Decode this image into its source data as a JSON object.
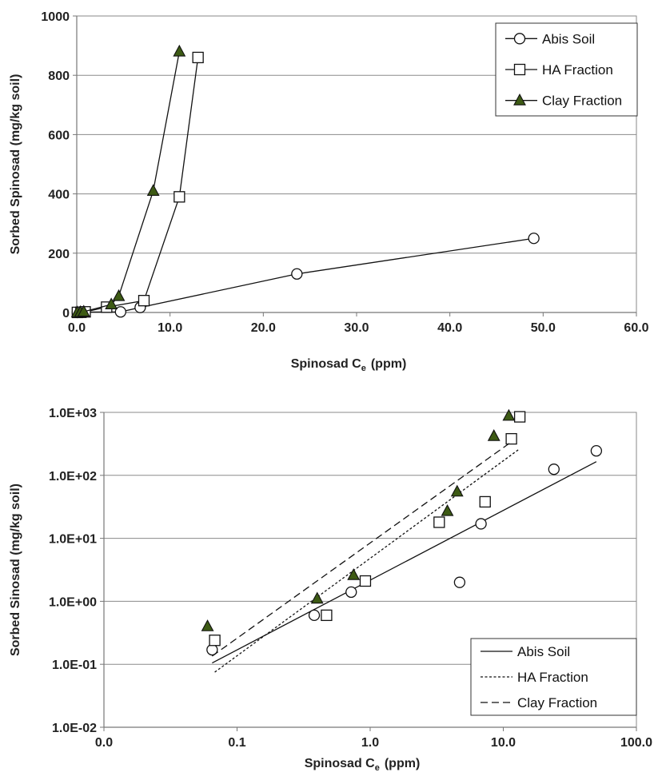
{
  "chart_data": [
    {
      "type": "scatter",
      "xlabel": "Spinosad C",
      "xlabel_sub": "e",
      "xlabel_unit": "(ppm)",
      "ylabel": "Sorbed Spinosad (mg/kg soil)",
      "xlim": [
        0,
        60
      ],
      "ylim": [
        0,
        1000
      ],
      "xticks": [
        0,
        10,
        20,
        30,
        40,
        50,
        60
      ],
      "xtick_labels": [
        "0.0",
        "10.0",
        "20.0",
        "30.0",
        "40.0",
        "50.0",
        "60.0"
      ],
      "yticks": [
        0,
        200,
        400,
        600,
        800,
        1000
      ],
      "ytick_labels": [
        "0",
        "200",
        "400",
        "600",
        "800",
        "1000"
      ],
      "grid": "horizontal",
      "legend_position": "top-right",
      "series": [
        {
          "name": "Abis Soil",
          "marker": "circle",
          "color": "#ffffff",
          "line": "solid",
          "x": [
            0.07,
            0.4,
            0.7,
            4.7,
            6.8,
            23.6,
            49.0
          ],
          "y": [
            0.2,
            0.6,
            1.4,
            2.0,
            17,
            130,
            250
          ]
        },
        {
          "name": "HA Fraction",
          "marker": "square",
          "color": "#ffffff",
          "line": "solid",
          "x": [
            0.07,
            0.45,
            0.9,
            3.2,
            7.2,
            11.0,
            13.0
          ],
          "y": [
            0.2,
            0.6,
            2.1,
            18,
            40,
            390,
            860
          ]
        },
        {
          "name": "Clay Fraction",
          "marker": "triangle",
          "color": "#3d5a14",
          "line": "solid",
          "x": [
            0.06,
            0.4,
            0.75,
            3.7,
            4.5,
            8.2,
            11.0
          ],
          "y": [
            0.4,
            1.1,
            2.6,
            27,
            55,
            410,
            880
          ]
        }
      ]
    },
    {
      "type": "scatter",
      "xscale": "log",
      "yscale": "log",
      "xlabel": "Spinosad C",
      "xlabel_sub": "e",
      "xlabel_unit": "(ppm)",
      "ylabel": "Sorbed Sinosad (mg/kg soil)",
      "xlim": [
        0.01,
        100
      ],
      "ylim": [
        0.01,
        1000
      ],
      "xticks": [
        0.01,
        0.1,
        1,
        10,
        100
      ],
      "xtick_labels": [
        "0.0",
        "0.1",
        "1.0",
        "10.0",
        "100.0"
      ],
      "yticks": [
        0.01,
        0.1,
        1,
        10,
        100,
        1000
      ],
      "ytick_labels": [
        "1.0E-02",
        "1.0E-01",
        "1.0E+00",
        "1.0E+01",
        "1.0E+02",
        "1.0E+03"
      ],
      "grid": "horizontal",
      "legend_position": "bottom-right",
      "series": [
        {
          "name": "Abis Soil",
          "marker": "circle",
          "color": "#ffffff",
          "line": "solid",
          "x": [
            0.065,
            0.38,
            0.72,
            4.7,
            6.8,
            24.0,
            50.0
          ],
          "y": [
            0.17,
            0.6,
            1.4,
            2.0,
            17,
            125,
            245
          ],
          "fit_x": [
            0.065,
            50
          ],
          "fit_y": [
            0.105,
            165
          ]
        },
        {
          "name": "HA Fraction",
          "marker": "square",
          "color": "#ffffff",
          "line": "dotted",
          "x": [
            0.068,
            0.47,
            0.92,
            3.3,
            7.3,
            11.5,
            13.3
          ],
          "y": [
            0.24,
            0.6,
            2.1,
            18,
            38,
            380,
            850
          ],
          "fit_x": [
            0.068,
            13.3
          ],
          "fit_y": [
            0.075,
            265
          ]
        },
        {
          "name": "Clay Fraction",
          "marker": "triangle",
          "color": "#3d5a14",
          "line": "dashed",
          "x": [
            0.06,
            0.4,
            0.75,
            3.8,
            4.5,
            8.5,
            11.0
          ],
          "y": [
            0.4,
            1.1,
            2.6,
            27,
            55,
            420,
            880
          ],
          "fit_x": [
            0.065,
            11.5
          ],
          "fit_y": [
            0.135,
            340
          ]
        }
      ]
    }
  ]
}
